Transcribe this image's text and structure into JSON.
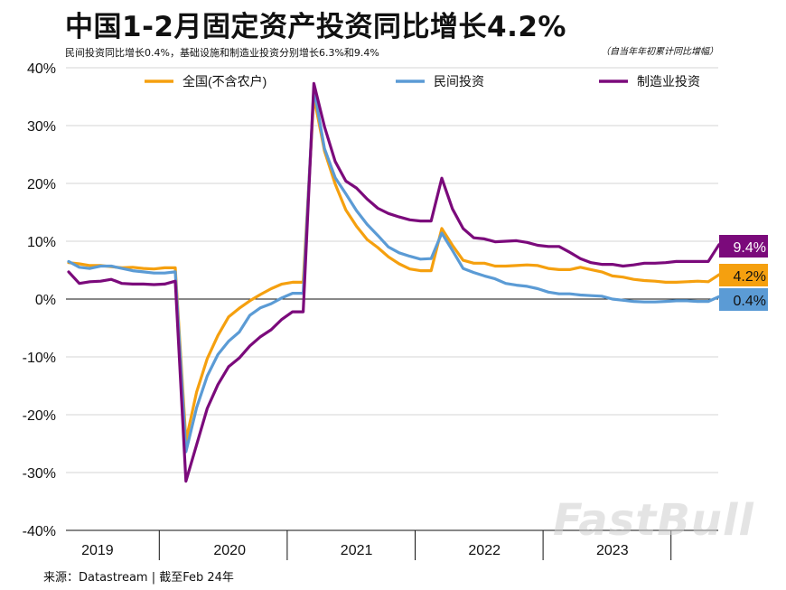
{
  "title": "中国1-2月固定资产投资同比增长4.2%",
  "subtitle": "民间投资同比增长0.4%，基础设施和制造业投资分别增长6.3%和9.4%",
  "note": "（自当年年初累计同比增幅）",
  "source": "来源：Datastream | 截至Feb 24年",
  "watermark": "FastBull",
  "colors": {
    "total": "#F5A00F",
    "private": "#5B9BD5",
    "manufacturing": "#7B0A7B"
  },
  "chart_data": {
    "type": "line",
    "ylim": [
      -40,
      40
    ],
    "y_ticks": [
      40,
      30,
      20,
      10,
      0,
      -10,
      -20,
      -30,
      -40
    ],
    "y_tick_labels": [
      "40%",
      "30%",
      "20%",
      "10%",
      "0%",
      "-10%",
      "-20%",
      "-30%",
      "-40%"
    ],
    "x_labels": [
      "2019",
      "2020",
      "2021",
      "2022",
      "2023"
    ],
    "grid": true,
    "legend_position": "top",
    "end_labels": [
      "9.4%",
      "4.2%",
      "0.4%"
    ],
    "series": [
      {
        "name": "全国(不含农户)",
        "color_key": "total",
        "values": [
          6.3,
          6.1,
          5.8,
          5.8,
          5.6,
          5.4,
          5.5,
          5.3,
          5.2,
          5.4,
          5.4,
          -24.5,
          -16.1,
          -10.3,
          -6.3,
          -3.1,
          -1.6,
          -0.3,
          0.8,
          1.8,
          2.6,
          2.9,
          2.9,
          35.0,
          25.6,
          19.9,
          15.4,
          12.6,
          10.3,
          8.9,
          7.3,
          6.1,
          5.2,
          4.9,
          4.9,
          12.2,
          9.3,
          6.7,
          6.2,
          6.2,
          5.7,
          5.7,
          5.8,
          5.9,
          5.8,
          5.3,
          5.1,
          5.1,
          5.5,
          5.1,
          4.7,
          4.0,
          3.8,
          3.4,
          3.2,
          3.1,
          2.9,
          2.9,
          3.0,
          3.1,
          3.0,
          4.2
        ]
      },
      {
        "name": "民间投资",
        "color_key": "private",
        "values": [
          6.5,
          5.5,
          5.3,
          5.7,
          5.7,
          5.3,
          4.9,
          4.7,
          4.5,
          4.5,
          4.7,
          -26.4,
          -18.8,
          -13.3,
          -9.6,
          -7.3,
          -5.7,
          -2.8,
          -1.5,
          -0.8,
          0.2,
          1.0,
          1.0,
          36.4,
          26.0,
          21.0,
          18.2,
          15.3,
          12.9,
          11.0,
          9.0,
          8.0,
          7.4,
          6.9,
          7.0,
          11.4,
          8.4,
          5.3,
          4.6,
          4.0,
          3.5,
          2.7,
          2.4,
          2.2,
          1.8,
          1.2,
          0.9,
          0.9,
          0.7,
          0.6,
          0.5,
          0.0,
          -0.2,
          -0.4,
          -0.5,
          -0.5,
          -0.4,
          -0.3,
          -0.3,
          -0.4,
          -0.4,
          0.4
        ]
      },
      {
        "name": "制造业投资",
        "color_key": "manufacturing",
        "values": [
          4.7,
          2.7,
          3.0,
          3.1,
          3.4,
          2.7,
          2.6,
          2.6,
          2.5,
          2.6,
          3.1,
          -31.5,
          -25.2,
          -18.9,
          -14.8,
          -11.7,
          -10.2,
          -8.1,
          -6.5,
          -5.3,
          -3.5,
          -2.2,
          -2.2,
          37.3,
          29.8,
          23.8,
          20.4,
          19.2,
          17.3,
          15.7,
          14.8,
          14.2,
          13.7,
          13.5,
          13.5,
          20.9,
          15.6,
          12.2,
          10.6,
          10.4,
          9.9,
          10.0,
          10.1,
          9.8,
          9.3,
          9.1,
          9.1,
          8.1,
          7.0,
          6.3,
          6.0,
          6.0,
          5.7,
          5.9,
          6.2,
          6.2,
          6.3,
          6.5,
          6.5,
          6.5,
          6.5,
          9.4
        ]
      }
    ]
  }
}
